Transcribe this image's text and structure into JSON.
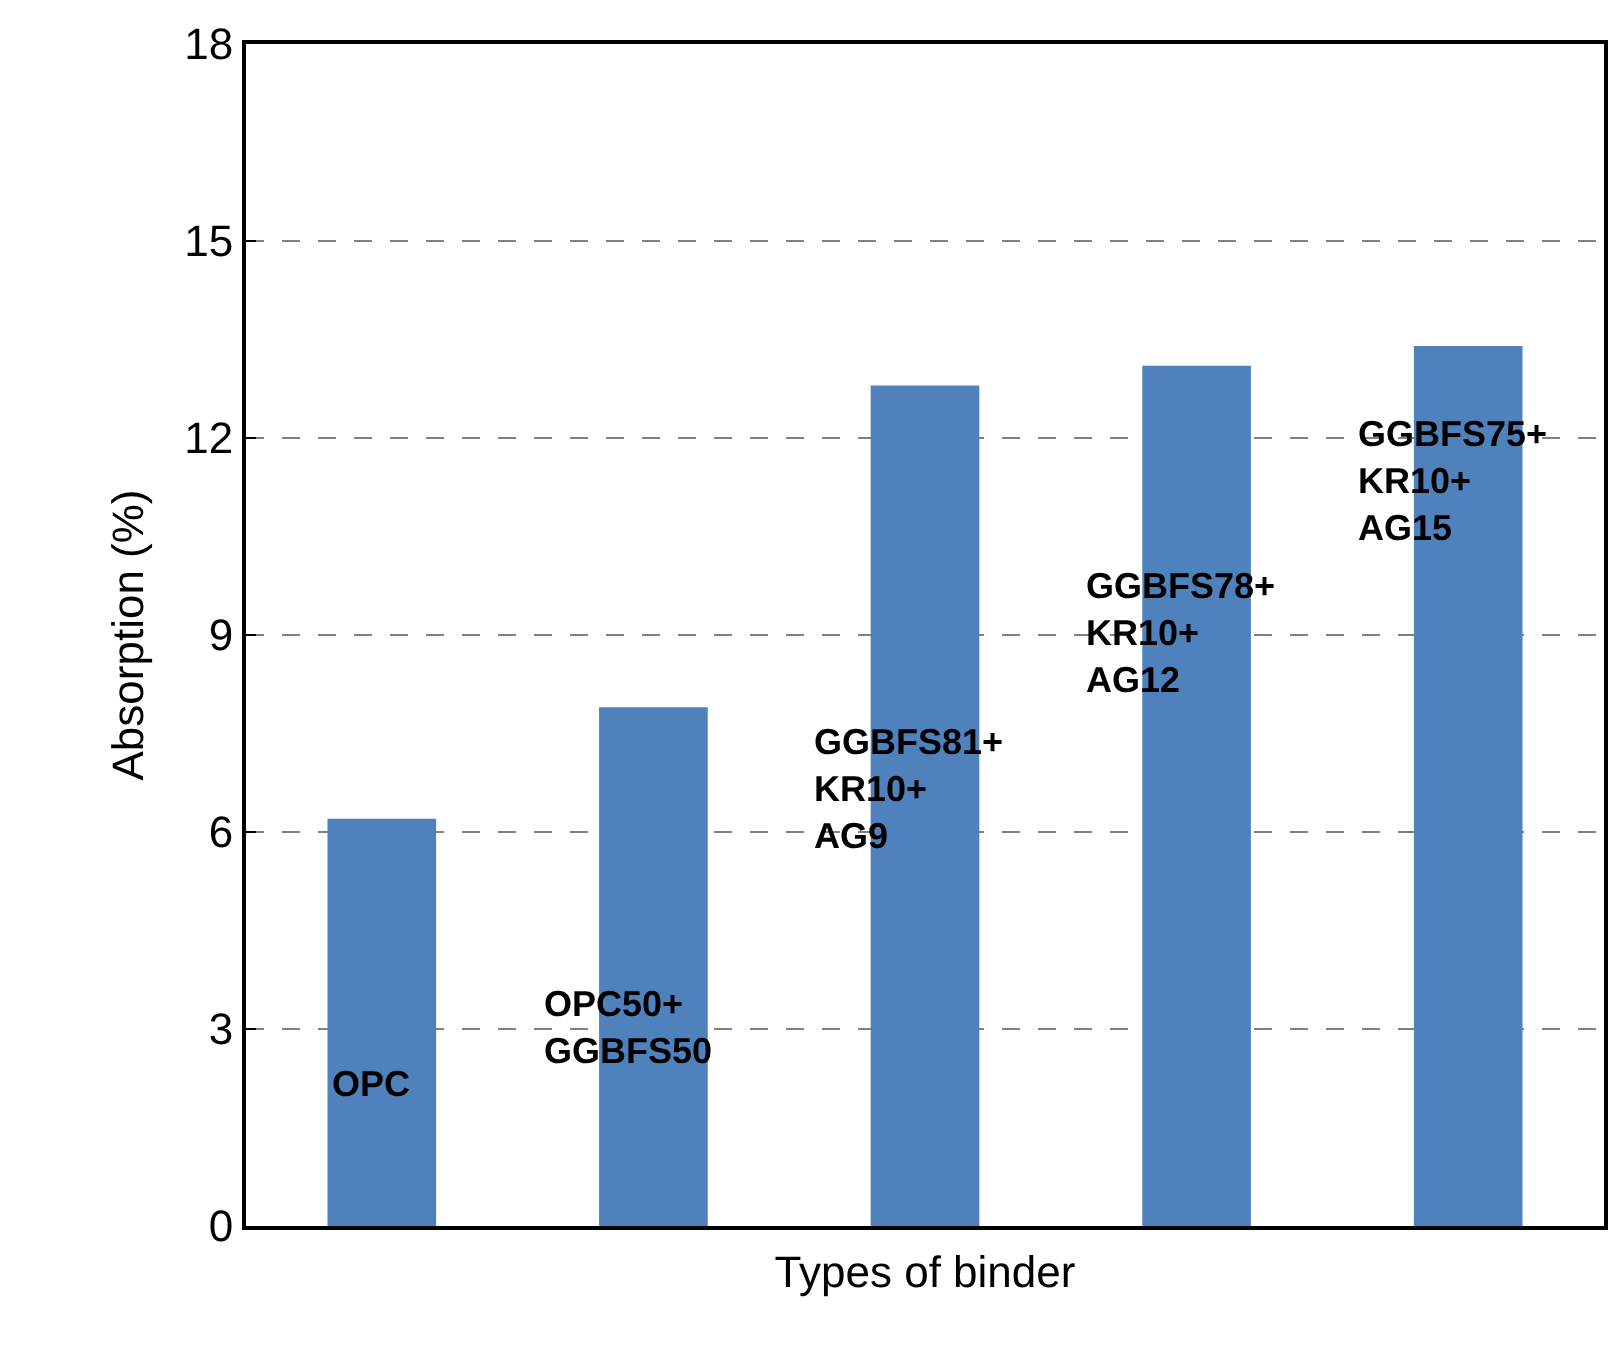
{
  "chart_data": {
    "type": "bar",
    "xlabel": "Types of binder",
    "ylabel": "Absorption (%)",
    "categories": [
      "OPC",
      "OPC50+\nGGBFS50",
      "GGBFS81+\nKR10+\nAG9",
      "GGBFS78+\nKR10+\nAG12",
      "GGBFS75+\nKR10+\nAG15"
    ],
    "values": [
      6.2,
      7.9,
      12.8,
      13.1,
      13.4
    ],
    "color": "#4f81bd",
    "ylim": [
      0,
      18
    ],
    "yticks": [
      0,
      3,
      6,
      9,
      12,
      15,
      18
    ],
    "grid": "y"
  }
}
